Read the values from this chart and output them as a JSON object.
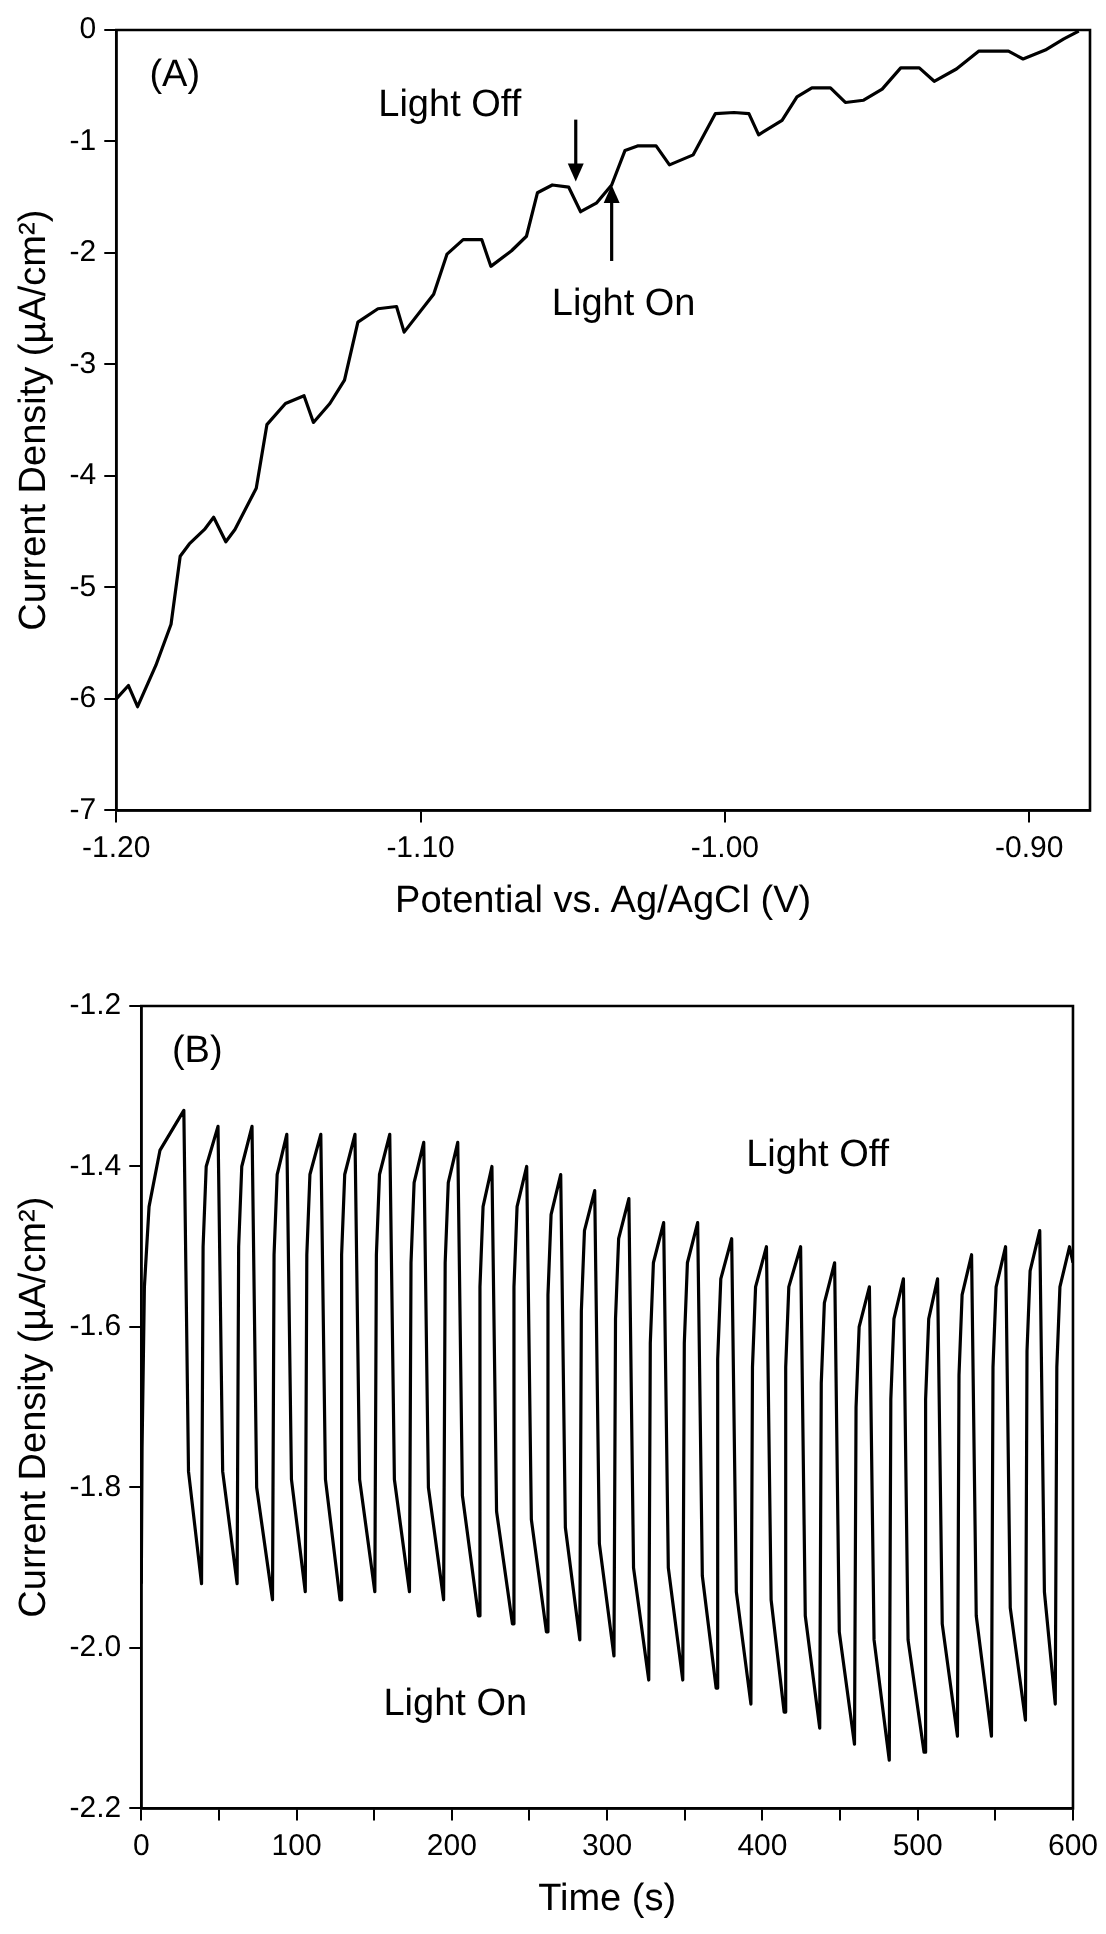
{
  "chart_data": [
    {
      "type": "line",
      "xlabel": "Potential vs. Ag/AgCl (V)",
      "ylabel": "Current Density (µA/cm²)",
      "xlim": [
        -1.2,
        -0.88
      ],
      "ylim": [
        -7,
        0
      ],
      "xticks": [
        {
          "value": -1.2,
          "label": "-1.20"
        },
        {
          "value": -1.1,
          "label": "-1.10"
        },
        {
          "value": -1.0,
          "label": "-1.00"
        },
        {
          "value": -0.9,
          "label": "-0.90"
        }
      ],
      "yticks": [
        -7,
        -6,
        -5,
        -4,
        -3,
        -2,
        -1,
        0
      ],
      "grid": false,
      "annotations": [
        "(A)",
        {
          "text": "Light Off",
          "x": -1.049,
          "y": -1.36
        },
        {
          "text": "Light On",
          "x": -1.0372,
          "y": -1.39
        }
      ],
      "series": [
        {
          "color": "#000000",
          "x": [
            -1.2,
            -1.196,
            -1.193,
            -1.187,
            -1.182,
            -1.179,
            -1.176,
            -1.171,
            -1.168,
            -1.164,
            -1.161,
            -1.154,
            -1.1505,
            -1.1444,
            -1.1383,
            -1.1352,
            -1.1298,
            -1.125,
            -1.1206,
            -1.114,
            -1.1079,
            -1.1054,
            -1.0957,
            -1.0913,
            -1.086,
            -1.0799,
            -1.0769,
            -1.0701,
            -1.0652,
            -1.0616,
            -1.0567,
            -1.0513,
            -1.0474,
            -1.0421,
            -1.0372,
            -1.0328,
            -1.0287,
            -1.0226,
            -1.0182,
            -1.0104,
            -1.0031,
            -0.997,
            -0.9921,
            -0.9889,
            -0.9812,
            -0.9763,
            -0.9714,
            -0.9653,
            -0.9604,
            -0.9544,
            -0.9483,
            -0.9422,
            -0.9361,
            -0.9312,
            -0.9239,
            -0.9166,
            -0.9068,
            -0.902,
            -0.8947,
            -0.8886,
            -0.8837
          ],
          "values": [
            -6.0,
            -5.88,
            -6.07,
            -5.7,
            -5.33,
            -4.72,
            -4.61,
            -4.48,
            -4.37,
            -4.59,
            -4.48,
            -4.11,
            -3.54,
            -3.35,
            -3.28,
            -3.52,
            -3.35,
            -3.14,
            -2.62,
            -2.5,
            -2.48,
            -2.71,
            -2.37,
            -2.01,
            -1.88,
            -1.88,
            -2.12,
            -1.98,
            -1.85,
            -1.46,
            -1.39,
            -1.41,
            -1.63,
            -1.55,
            -1.39,
            -1.08,
            -1.04,
            -1.04,
            -1.21,
            -1.12,
            -0.75,
            -0.74,
            -0.75,
            -0.94,
            -0.81,
            -0.6,
            -0.52,
            -0.52,
            -0.65,
            -0.63,
            -0.53,
            -0.34,
            -0.34,
            -0.46,
            -0.35,
            -0.19,
            -0.19,
            -0.26,
            -0.18,
            -0.08,
            -0.01
          ]
        }
      ]
    },
    {
      "type": "line",
      "xlabel": "Time (s)",
      "ylabel": "Current Density (µA/cm²)",
      "xlim": [
        0,
        600
      ],
      "ylim": [
        -2.2,
        -1.2
      ],
      "xticks": [
        0,
        {
          "value": 50,
          "label": null
        },
        100,
        {
          "value": 150,
          "label": null
        },
        200,
        {
          "value": 250,
          "label": null
        },
        300,
        {
          "value": 350,
          "label": null
        },
        400,
        {
          "value": 450,
          "label": null
        },
        500,
        {
          "value": 550,
          "label": null
        },
        600
      ],
      "yticks": [
        {
          "value": -2.2,
          "label": "-2.2"
        },
        {
          "value": -2.0,
          "label": "-2.0"
        },
        {
          "value": -1.8,
          "label": "-1.8"
        },
        {
          "value": -1.6,
          "label": "-1.6"
        },
        {
          "value": -1.4,
          "label": "-1.4"
        },
        {
          "value": -1.2,
          "label": "-1.2"
        }
      ],
      "grid": false,
      "annotations": [
        "(B)",
        "Light Off",
        "Light On"
      ],
      "series": [
        {
          "color": "#000000",
          "x": [
            0,
            0.5,
            2,
            5,
            12,
            27.4,
            30.4,
            38.8,
            39.8,
            41.8,
            49.4,
            52.4,
            61.7,
            62.7,
            64.7,
            71.3,
            74.3,
            84.5,
            85.5,
            87.5,
            93.7,
            96.7,
            105.6,
            106.6,
            108.6,
            115.6,
            118.6,
            128.0,
            129.0,
            131.0,
            137.6,
            140.6,
            150.4,
            151.4,
            153.4,
            160.0,
            163.0,
            172.7,
            173.7,
            175.7,
            181.9,
            184.9,
            194.7,
            195.7,
            197.7,
            203.8,
            206.8,
            217.1,
            218.1,
            220.1,
            225.8,
            228.8,
            239.0,
            240.0,
            242.0,
            248.2,
            251.2,
            260.9,
            261.9,
            263.9,
            270.1,
            273.1,
            282.4,
            283.4,
            285.4,
            292.0,
            295.0,
            304.4,
            305.4,
            307.4,
            314.0,
            317.0,
            326.8,
            327.8,
            329.8,
            336.4,
            339.4,
            348.7,
            349.7,
            351.7,
            358.3,
            361.3,
            370.2,
            371.2,
            373.2,
            380.2,
            383.2,
            392.6,
            393.6,
            395.6,
            402.6,
            405.6,
            414.0,
            415.0,
            417.0,
            424.6,
            427.6,
            436.9,
            437.9,
            439.9,
            446.5,
            449.5,
            459.3,
            460.3,
            462.3,
            468.9,
            471.9,
            481.7,
            482.7,
            484.7,
            490.8,
            493.8,
            504.1,
            505.1,
            507.1,
            512.8,
            515.8,
            525.6,
            526.6,
            528.6,
            534.7,
            537.7,
            547.5,
            548.5,
            550.5,
            556.6,
            559.6,
            569.4,
            570.4,
            572.4,
            578.6,
            581.6,
            588.6,
            589.6,
            591.6,
            597.8,
            600
          ],
          "values": [
            -1.92,
            -1.75,
            -1.55,
            -1.45,
            -1.38,
            -1.33,
            -1.78,
            -1.92,
            -1.5,
            -1.4,
            -1.35,
            -1.78,
            -1.92,
            -1.5,
            -1.4,
            -1.35,
            -1.8,
            -1.94,
            -1.51,
            -1.41,
            -1.36,
            -1.79,
            -1.93,
            -1.51,
            -1.41,
            -1.36,
            -1.79,
            -1.94,
            -1.51,
            -1.41,
            -1.36,
            -1.79,
            -1.93,
            -1.51,
            -1.41,
            -1.36,
            -1.79,
            -1.93,
            -1.52,
            -1.42,
            -1.37,
            -1.8,
            -1.94,
            -1.52,
            -1.42,
            -1.37,
            -1.81,
            -1.96,
            -1.55,
            -1.45,
            -1.4,
            -1.83,
            -1.97,
            -1.55,
            -1.45,
            -1.4,
            -1.84,
            -1.98,
            -1.56,
            -1.46,
            -1.41,
            -1.85,
            -1.99,
            -1.58,
            -1.48,
            -1.43,
            -1.87,
            -2.01,
            -1.59,
            -1.49,
            -1.44,
            -1.9,
            -2.04,
            -1.62,
            -1.52,
            -1.47,
            -1.9,
            -2.04,
            -1.62,
            -1.52,
            -1.47,
            -1.91,
            -2.05,
            -1.64,
            -1.54,
            -1.49,
            -1.93,
            -2.07,
            -1.65,
            -1.55,
            -1.5,
            -1.94,
            -2.08,
            -1.65,
            -1.55,
            -1.5,
            -1.96,
            -2.1,
            -1.67,
            -1.57,
            -1.52,
            -1.98,
            -2.12,
            -1.7,
            -1.6,
            -1.55,
            -1.99,
            -2.14,
            -1.69,
            -1.59,
            -1.54,
            -1.99,
            -2.13,
            -1.69,
            -1.59,
            -1.54,
            -1.97,
            -2.11,
            -1.66,
            -1.56,
            -1.51,
            -1.96,
            -2.11,
            -1.65,
            -1.55,
            -1.5,
            -1.95,
            -2.09,
            -1.63,
            -1.53,
            -1.48,
            -1.93,
            -2.07,
            -1.65,
            -1.55,
            -1.5,
            -1.52
          ]
        }
      ]
    }
  ]
}
